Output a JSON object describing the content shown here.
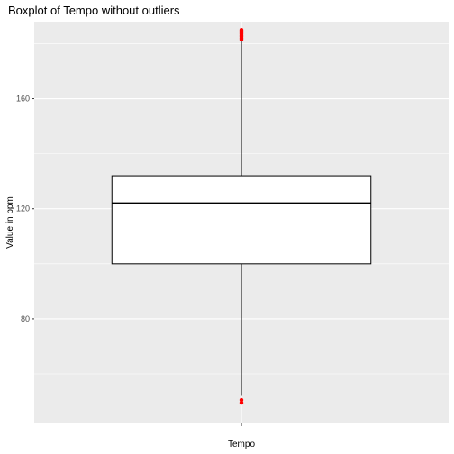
{
  "chart_data": {
    "type": "boxplot",
    "title": "Boxplot of Tempo without outliers",
    "xlabel": "",
    "ylabel": "Value in bpm",
    "categories": [
      "Tempo"
    ],
    "y_ticks": [
      80,
      120,
      160
    ],
    "ylim": [
      42,
      188
    ],
    "grid": true,
    "panel_background": "#EBEBEB",
    "grid_color": "#FFFFFF",
    "box": {
      "category": "Tempo",
      "lower_whisker": 52,
      "q1": 100,
      "median": 122,
      "q3": 132,
      "upper_whisker": 182,
      "outliers": [
        49.5,
        50.5,
        181.5,
        182,
        182.5,
        183,
        183.5,
        184,
        184.5,
        185
      ],
      "outlier_color": "#FF0000",
      "box_fill": "#FFFFFF",
      "line_color": "#000000"
    }
  }
}
